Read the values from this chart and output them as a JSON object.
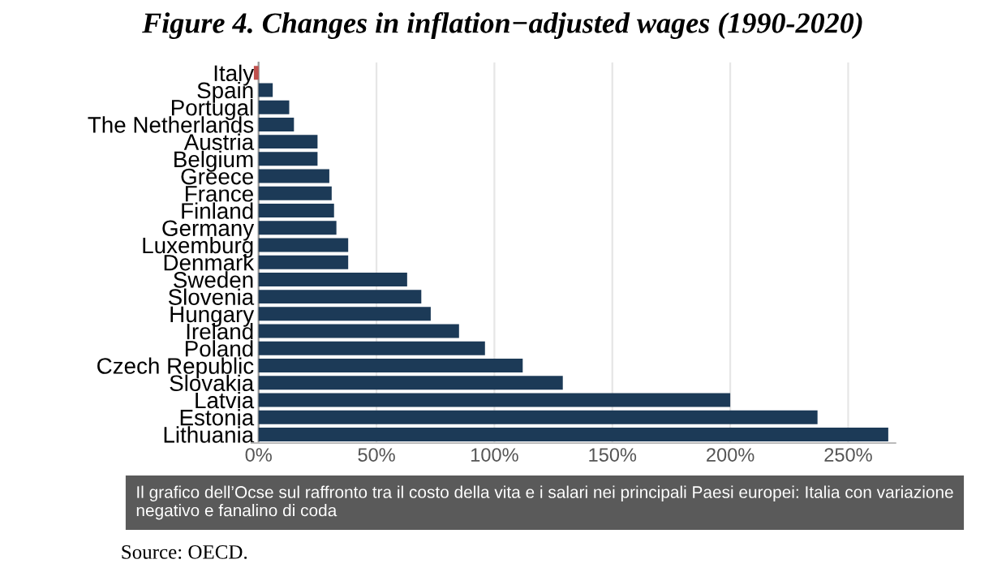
{
  "chart_data": {
    "type": "bar",
    "orientation": "horizontal",
    "title": "Figure 4. Changes in inflation−adjusted wages (1990-2020)",
    "categories": [
      "Italy",
      "Spain",
      "Portugal",
      "The Netherlands",
      "Austria",
      "Belgium",
      "Greece",
      "France",
      "Finland",
      "Germany",
      "Luxemburg",
      "Denmark",
      "Sweden",
      "Slovenia",
      "Hungary",
      "Ireland",
      "Poland",
      "Czech Republic",
      "Slovakia",
      "Latvia",
      "Estonia",
      "Lithuania"
    ],
    "values": [
      -2,
      6,
      13,
      15,
      25,
      25,
      30,
      31,
      32,
      33,
      38,
      38,
      63,
      69,
      73,
      85,
      96,
      112,
      129,
      200,
      237,
      267
    ],
    "colors": [
      "#c0504d",
      "#1c3a57",
      "#1c3a57",
      "#1c3a57",
      "#1c3a57",
      "#1c3a57",
      "#1c3a57",
      "#1c3a57",
      "#1c3a57",
      "#1c3a57",
      "#1c3a57",
      "#1c3a57",
      "#1c3a57",
      "#1c3a57",
      "#1c3a57",
      "#1c3a57",
      "#1c3a57",
      "#1c3a57",
      "#1c3a57",
      "#1c3a57",
      "#1c3a57",
      "#1c3a57"
    ],
    "xlim": [
      -3,
      270
    ],
    "xticks": [
      {
        "value": 0,
        "label": "0%"
      },
      {
        "value": 50,
        "label": "50%"
      },
      {
        "value": 100,
        "label": "100%"
      },
      {
        "value": 150,
        "label": "150%"
      },
      {
        "value": 200,
        "label": "200%"
      },
      {
        "value": 250,
        "label": "250%"
      }
    ],
    "grid": "x",
    "annotations": [
      "Il grafico dell’Ocse sul raffronto tra il costo della vita e i salari nei principali Paesi europei: Italia con variazione negativo e fanalino di coda",
      "Source: OECD."
    ]
  }
}
